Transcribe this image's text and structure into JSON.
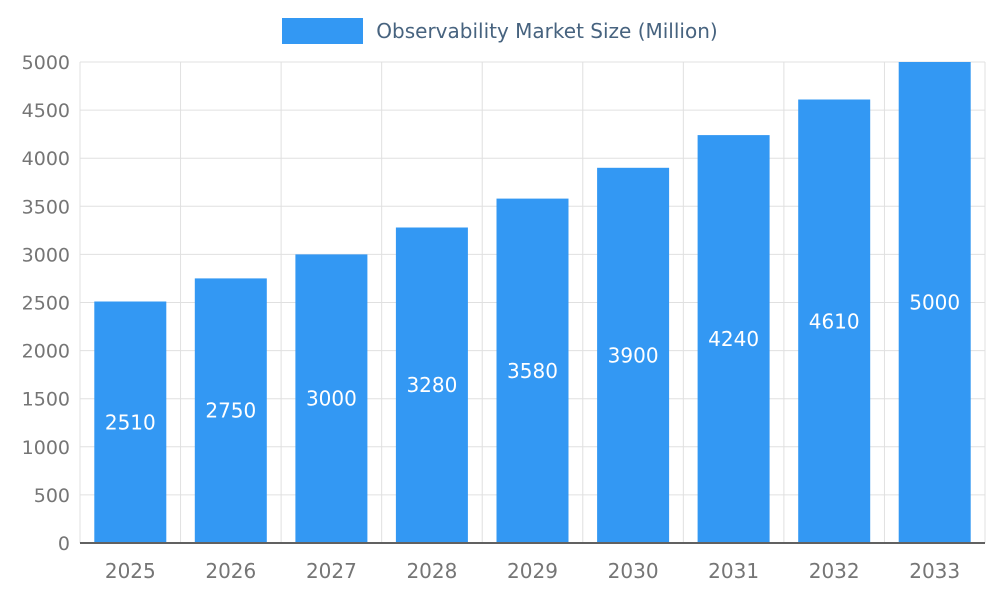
{
  "chart_data": {
    "type": "bar",
    "title": "Observability Market Size (Million)",
    "categories": [
      "2025",
      "2026",
      "2027",
      "2028",
      "2029",
      "2030",
      "2031",
      "2032",
      "2033"
    ],
    "values": [
      2510,
      2750,
      3000,
      3280,
      3580,
      3900,
      4240,
      4610,
      5000
    ],
    "xlabel": "",
    "ylabel": "",
    "ylim": [
      0,
      5000
    ],
    "yticks": [
      0,
      500,
      1000,
      1500,
      2000,
      2500,
      3000,
      3500,
      4000,
      4500,
      5000
    ],
    "grid": true,
    "legend_position": "top",
    "colors": {
      "bar": "#3398f3",
      "value_label": "#ffffff",
      "axis_tick_label": "#757575",
      "gridline": "#e0e0e0",
      "baseline": "#616161",
      "legend_text": "#47637f",
      "background": "#ffffff"
    }
  }
}
